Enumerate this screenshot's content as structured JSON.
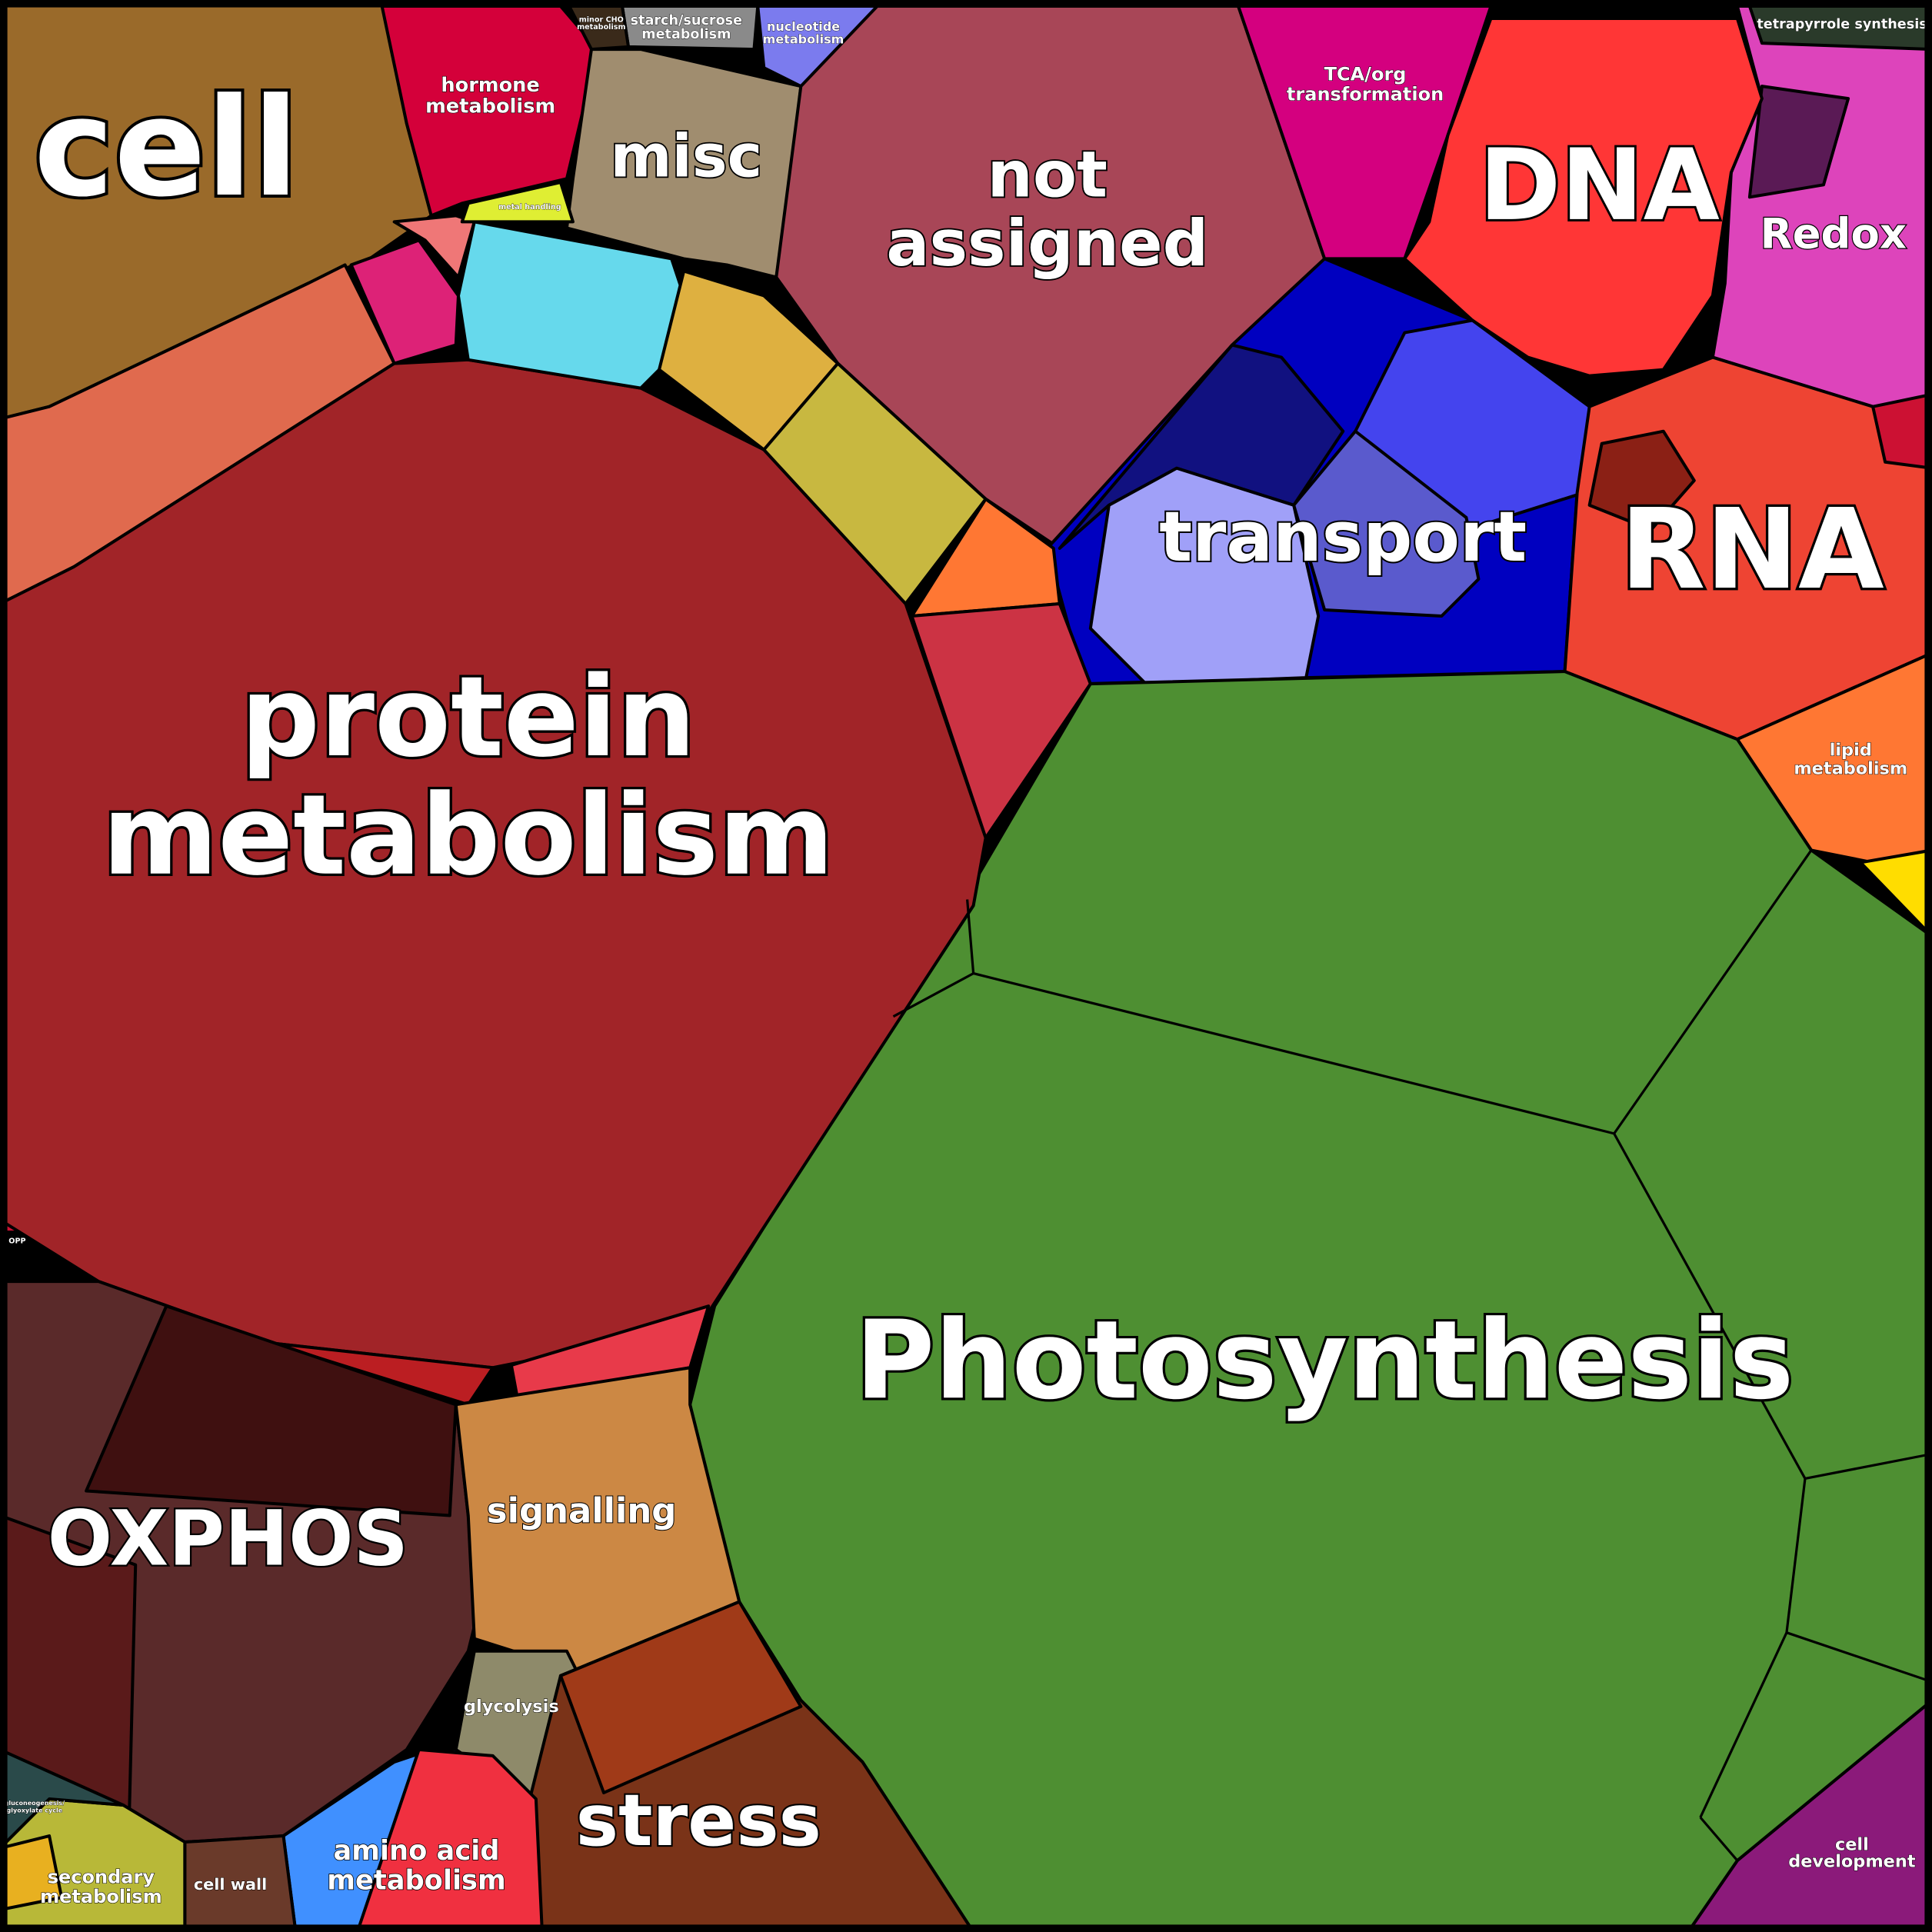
{
  "regions": [
    {
      "lines": [
        "cell"
      ]
    },
    {
      "lines": [
        "hormone",
        "metabolism"
      ]
    },
    {
      "lines": [
        "starch/sucrose",
        "metabolism"
      ]
    },
    {
      "lines": [
        "minor CHO",
        "metabolism"
      ]
    },
    {
      "lines": [
        "nucleotide",
        "metabolism"
      ]
    },
    {
      "lines": [
        "misc"
      ]
    },
    {
      "lines": [
        "not",
        "assigned"
      ]
    },
    {
      "lines": [
        "TCA/org",
        "transformation"
      ]
    },
    {
      "lines": [
        "DNA"
      ]
    },
    {
      "lines": [
        "tetrapyrrole synthesis"
      ]
    },
    {
      "lines": [
        "Redox"
      ]
    },
    {
      "lines": [
        "transport"
      ]
    },
    {
      "lines": [
        "RNA"
      ]
    },
    {
      "lines": [
        "lipid",
        "metabolism"
      ]
    },
    {
      "lines": [
        "protein",
        "metabolism"
      ]
    },
    {
      "lines": [
        "Photosynthesis"
      ]
    },
    {
      "lines": [
        "OXPHOS"
      ]
    },
    {
      "lines": [
        "signalling"
      ]
    },
    {
      "lines": [
        "glycolysis"
      ]
    },
    {
      "lines": [
        "stress"
      ]
    },
    {
      "lines": [
        "amino acid",
        "metabolism"
      ]
    },
    {
      "lines": [
        "cell wall"
      ]
    },
    {
      "lines": [
        "secondary",
        "metabolism"
      ]
    },
    {
      "lines": [
        "cell",
        "development"
      ]
    },
    {
      "lines": [
        "metal handling"
      ]
    },
    {
      "lines": [
        "OPP"
      ]
    },
    {
      "lines": [
        "gluconeogenesis/",
        "glyoxylate cycle"
      ]
    }
  ]
}
